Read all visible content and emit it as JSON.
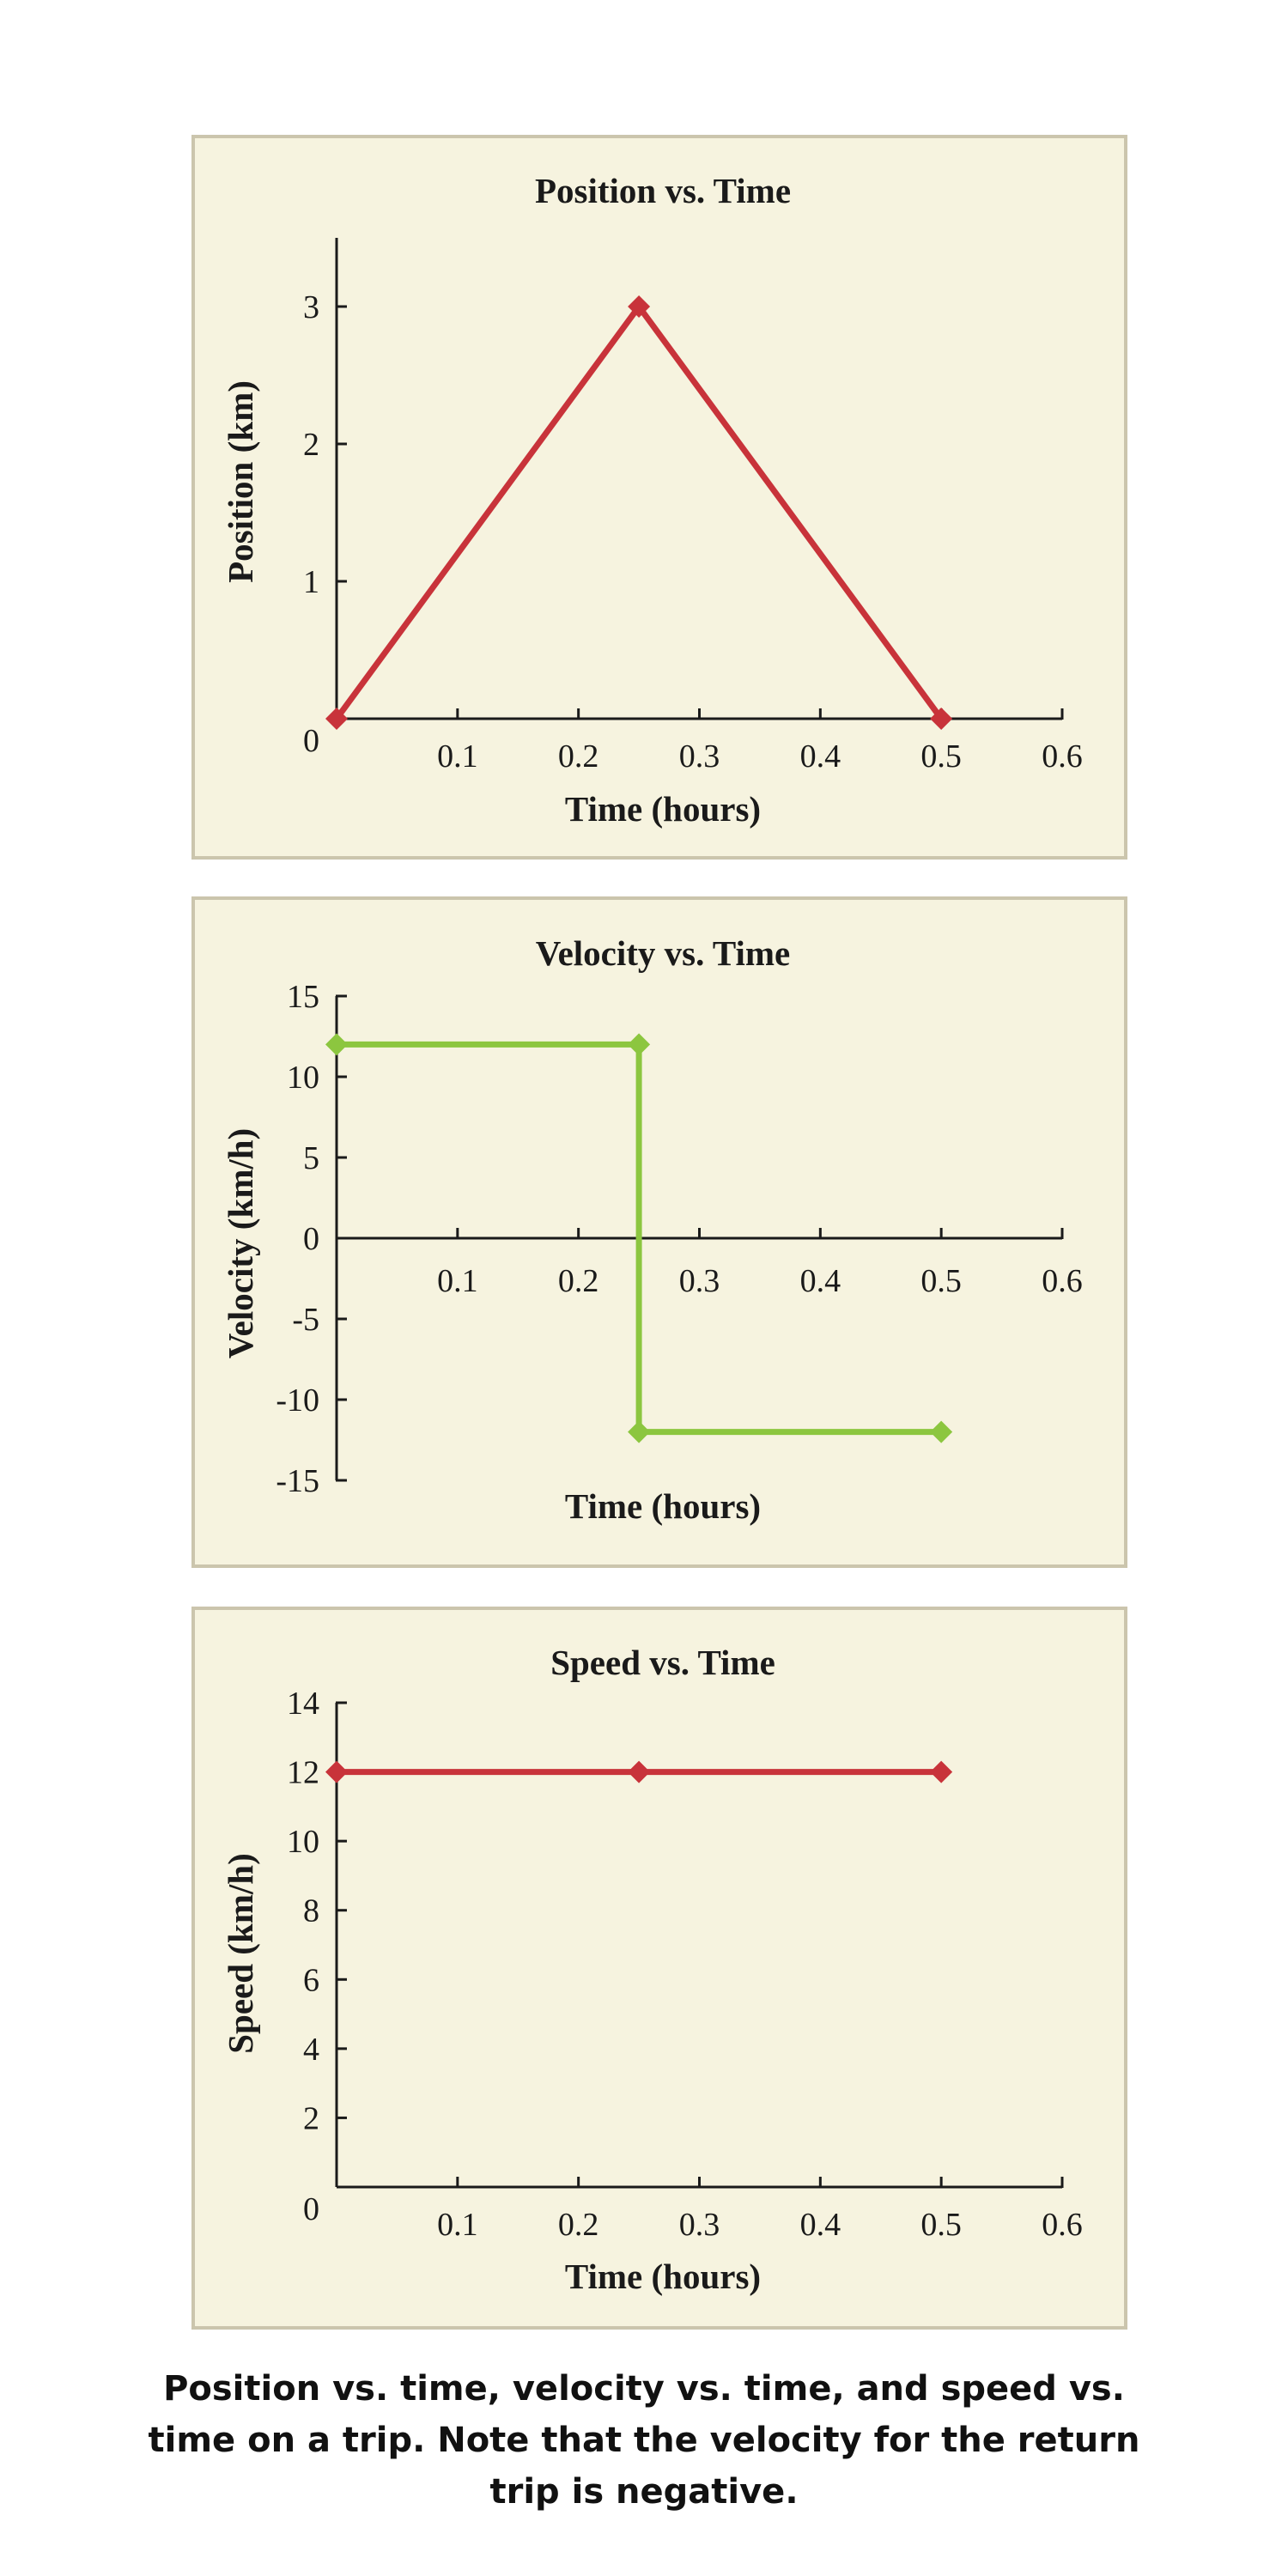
{
  "chart_data": [
    {
      "type": "line",
      "title": "Position vs. Time",
      "xlabel": "Time (hours)",
      "ylabel": "Position (km)",
      "x_ticks": [
        "0.1",
        "0.2",
        "0.3",
        "0.4",
        "0.5",
        "0.6"
      ],
      "y_ticks": [
        "0",
        "1",
        "2",
        "3"
      ],
      "xlim": [
        0,
        0.6
      ],
      "ylim": [
        0,
        3.5
      ],
      "series": [
        {
          "color": "#c8333a",
          "x": [
            0,
            0.25,
            0.5
          ],
          "y": [
            0,
            3,
            0
          ]
        }
      ]
    },
    {
      "type": "line",
      "title": "Velocity vs. Time",
      "xlabel": "Time (hours)",
      "ylabel": "Velocity (km/h)",
      "x_ticks": [
        "0.1",
        "0.2",
        "0.3",
        "0.4",
        "0.5",
        "0.6"
      ],
      "y_ticks": [
        "15",
        "10",
        "5",
        "0",
        "-5",
        "-10",
        "-15"
      ],
      "xlim": [
        0,
        0.6
      ],
      "ylim": [
        -15,
        15
      ],
      "series": [
        {
          "color": "#8cc63f",
          "x": [
            0,
            0.25,
            0.25,
            0.5
          ],
          "y": [
            12,
            12,
            -12,
            -12
          ]
        }
      ]
    },
    {
      "type": "line",
      "title": "Speed vs. Time",
      "xlabel": "Time (hours)",
      "ylabel": "Speed (km/h)",
      "x_ticks": [
        "0.1",
        "0.2",
        "0.3",
        "0.4",
        "0.5",
        "0.6"
      ],
      "y_ticks": [
        "0",
        "2",
        "4",
        "6",
        "8",
        "10",
        "12",
        "14"
      ],
      "xlim": [
        0,
        0.6
      ],
      "ylim": [
        0,
        14
      ],
      "series": [
        {
          "color": "#c8333a",
          "x": [
            0,
            0.25,
            0.5
          ],
          "y": [
            12,
            12,
            12
          ]
        }
      ]
    }
  ],
  "caption": "Position vs. time, velocity vs. time, and speed vs. time on a trip. Note that the velocity for the return trip is negative."
}
